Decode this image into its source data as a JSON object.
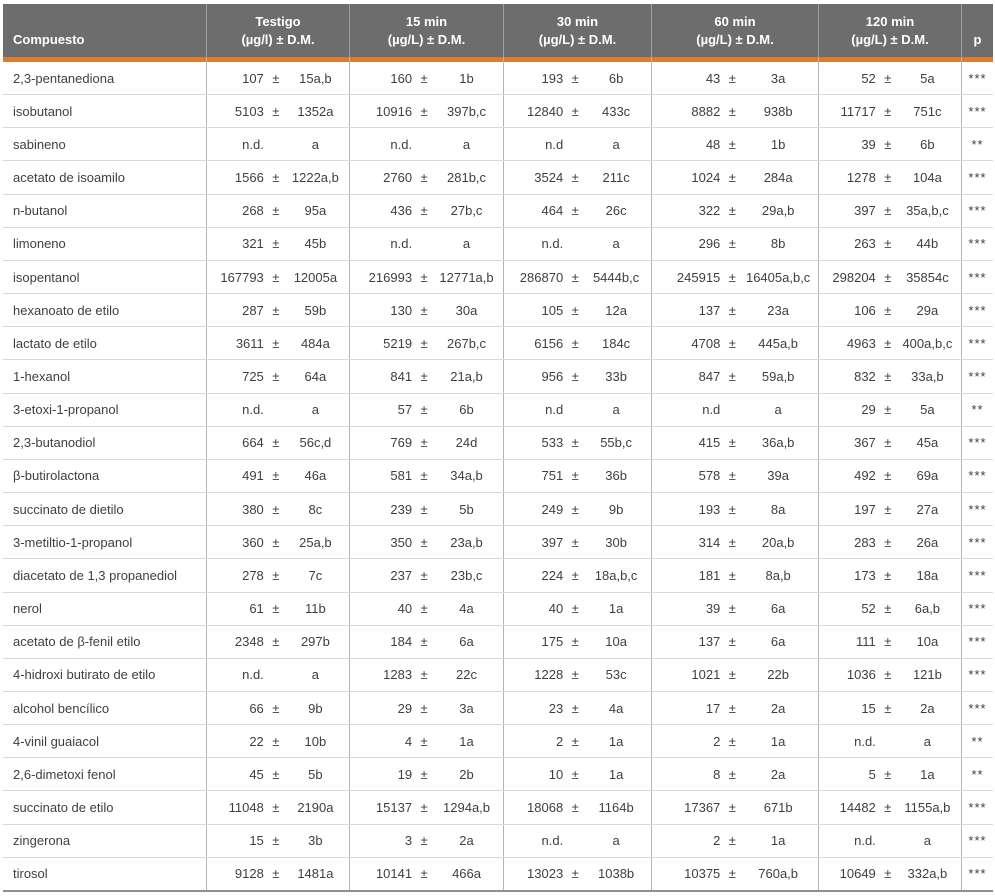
{
  "colors": {
    "header_bg": "#6d6d6d",
    "header_text": "#ffffff",
    "accent_orange": "#dd7b2f",
    "row_border": "#d9d9d9",
    "column_border": "#b5b5b5",
    "header_column_border": "#9f9f9f",
    "bottom_border": "#8f8f8f",
    "body_text": "#3f3f3f",
    "background": "#ffffff"
  },
  "table": {
    "compound_header": "Compuesto",
    "p_header": "p",
    "group_headers": [
      {
        "line1": "Testigo",
        "line2": "(µg/l) ± D.M."
      },
      {
        "line1": "15 min",
        "line2": "(µg/L) ± D.M."
      },
      {
        "line1": "30 min",
        "line2": "(µg/L) ± D.M."
      },
      {
        "line1": "60 min",
        "line2": "(µg/L) ± D.M."
      },
      {
        "line1": "120 min",
        "line2": "(µg/L) ± D.M."
      }
    ],
    "rows": [
      {
        "compound": "2,3-pentanediona",
        "cells": [
          [
            "107",
            "±",
            "15a,b"
          ],
          [
            "160",
            "±",
            "1b"
          ],
          [
            "193",
            "±",
            "6b"
          ],
          [
            "43",
            "±",
            "3a"
          ],
          [
            "52",
            "±",
            "5a"
          ]
        ],
        "p": "***"
      },
      {
        "compound": "isobutanol",
        "cells": [
          [
            "5103",
            "±",
            "1352a"
          ],
          [
            "10916",
            "±",
            "397b,c"
          ],
          [
            "12840",
            "±",
            "433c"
          ],
          [
            "8882",
            "±",
            "938b"
          ],
          [
            "11717",
            "±",
            "751c"
          ]
        ],
        "p": "***"
      },
      {
        "compound": "sabineno",
        "cells": [
          [
            "n.d.",
            "",
            "a"
          ],
          [
            "n.d.",
            "",
            "a"
          ],
          [
            "n.d",
            "",
            "a"
          ],
          [
            "48",
            "±",
            "1b"
          ],
          [
            "39",
            "±",
            "6b"
          ]
        ],
        "p": "**"
      },
      {
        "compound": "acetato de isoamilo",
        "cells": [
          [
            "1566",
            "±",
            "1222a,b"
          ],
          [
            "2760",
            "±",
            "281b,c"
          ],
          [
            "3524",
            "±",
            "211c"
          ],
          [
            "1024",
            "±",
            "284a"
          ],
          [
            "1278",
            "±",
            "104a"
          ]
        ],
        "p": "***"
      },
      {
        "compound": "n-butanol",
        "cells": [
          [
            "268",
            "±",
            "95a"
          ],
          [
            "436",
            "±",
            "27b,c"
          ],
          [
            "464",
            "±",
            "26c"
          ],
          [
            "322",
            "±",
            "29a,b"
          ],
          [
            "397",
            "±",
            "35a,b,c"
          ]
        ],
        "p": "***"
      },
      {
        "compound": "limoneno",
        "cells": [
          [
            "321",
            "±",
            "45b"
          ],
          [
            "n.d.",
            "",
            "a"
          ],
          [
            "n.d.",
            "",
            "a"
          ],
          [
            "296",
            "±",
            "8b"
          ],
          [
            "263",
            "±",
            "44b"
          ]
        ],
        "p": "***"
      },
      {
        "compound": "isopentanol",
        "cells": [
          [
            "167793",
            "±",
            "12005a"
          ],
          [
            "216993",
            "±",
            "12771a,b"
          ],
          [
            "286870",
            "±",
            "5444b,c"
          ],
          [
            "245915",
            "±",
            "16405a,b,c"
          ],
          [
            "298204",
            "±",
            "35854c"
          ]
        ],
        "p": "***"
      },
      {
        "compound": "hexanoato de etilo",
        "cells": [
          [
            "287",
            "±",
            "59b"
          ],
          [
            "130",
            "±",
            "30a"
          ],
          [
            "105",
            "±",
            "12a"
          ],
          [
            "137",
            "±",
            "23a"
          ],
          [
            "106",
            "±",
            "29a"
          ]
        ],
        "p": "***"
      },
      {
        "compound": "lactato de etilo",
        "cells": [
          [
            "3611",
            "±",
            "484a"
          ],
          [
            "5219",
            "±",
            "267b,c"
          ],
          [
            "6156",
            "±",
            "184c"
          ],
          [
            "4708",
            "±",
            "445a,b"
          ],
          [
            "4963",
            "±",
            "400a,b,c"
          ]
        ],
        "p": "***"
      },
      {
        "compound": "1-hexanol",
        "cells": [
          [
            "725",
            "±",
            "64a"
          ],
          [
            "841",
            "±",
            "21a,b"
          ],
          [
            "956",
            "±",
            "33b"
          ],
          [
            "847",
            "±",
            "59a,b"
          ],
          [
            "832",
            "±",
            "33a,b"
          ]
        ],
        "p": "***"
      },
      {
        "compound": "3-etoxi-1-propanol",
        "cells": [
          [
            "n.d.",
            "",
            "a"
          ],
          [
            "57",
            "±",
            "6b"
          ],
          [
            "n.d",
            "",
            "a"
          ],
          [
            "n.d",
            "",
            "a"
          ],
          [
            "29",
            "±",
            "5a"
          ]
        ],
        "p": "**"
      },
      {
        "compound": "2,3-butanodiol",
        "cells": [
          [
            "664",
            "±",
            "56c,d"
          ],
          [
            "769",
            "±",
            "24d"
          ],
          [
            "533",
            "±",
            "55b,c"
          ],
          [
            "415",
            "±",
            "36a,b"
          ],
          [
            "367",
            "±",
            "45a"
          ]
        ],
        "p": "***"
      },
      {
        "compound": "β-butirolactona",
        "cells": [
          [
            "491",
            "±",
            "46a"
          ],
          [
            "581",
            "±",
            "34a,b"
          ],
          [
            "751",
            "±",
            "36b"
          ],
          [
            "578",
            "±",
            "39a"
          ],
          [
            "492",
            "±",
            "69a"
          ]
        ],
        "p": "***"
      },
      {
        "compound": "succinato de dietilo",
        "cells": [
          [
            "380",
            "±",
            "8c"
          ],
          [
            "239",
            "±",
            "5b"
          ],
          [
            "249",
            "±",
            "9b"
          ],
          [
            "193",
            "±",
            "8a"
          ],
          [
            "197",
            "±",
            "27a"
          ]
        ],
        "p": "***"
      },
      {
        "compound": "3-metiltio-1-propanol",
        "cells": [
          [
            "360",
            "±",
            "25a,b"
          ],
          [
            "350",
            "±",
            "23a,b"
          ],
          [
            "397",
            "±",
            "30b"
          ],
          [
            "314",
            "±",
            "20a,b"
          ],
          [
            "283",
            "±",
            "26a"
          ]
        ],
        "p": "***"
      },
      {
        "compound": "diacetato de 1,3 propanediol",
        "cells": [
          [
            "278",
            "±",
            "7c"
          ],
          [
            "237",
            "±",
            "23b,c"
          ],
          [
            "224",
            "±",
            "18a,b,c"
          ],
          [
            "181",
            "±",
            "8a,b"
          ],
          [
            "173",
            "±",
            "18a"
          ]
        ],
        "p": "***"
      },
      {
        "compound": "nerol",
        "cells": [
          [
            "61",
            "±",
            "11b"
          ],
          [
            "40",
            "±",
            "4a"
          ],
          [
            "40",
            "±",
            "1a"
          ],
          [
            "39",
            "±",
            "6a"
          ],
          [
            "52",
            "±",
            "6a,b"
          ]
        ],
        "p": "***"
      },
      {
        "compound": "acetato de β-fenil etilo",
        "cells": [
          [
            "2348",
            "±",
            "297b"
          ],
          [
            "184",
            "±",
            "6a"
          ],
          [
            "175",
            "±",
            "10a"
          ],
          [
            "137",
            "±",
            "6a"
          ],
          [
            "111",
            "±",
            "10a"
          ]
        ],
        "p": "***"
      },
      {
        "compound": "4-hidroxi butirato de etilo",
        "cells": [
          [
            "n.d.",
            "",
            "a"
          ],
          [
            "1283",
            "±",
            "22c"
          ],
          [
            "1228",
            "±",
            "53c"
          ],
          [
            "1021",
            "±",
            "22b"
          ],
          [
            "1036",
            "±",
            "121b"
          ]
        ],
        "p": "***"
      },
      {
        "compound": "alcohol bencílico",
        "cells": [
          [
            "66",
            "±",
            "9b"
          ],
          [
            "29",
            "±",
            "3a"
          ],
          [
            "23",
            "±",
            "4a"
          ],
          [
            "17",
            "±",
            "2a"
          ],
          [
            "15",
            "±",
            "2a"
          ]
        ],
        "p": "***"
      },
      {
        "compound": "4-vinil guaiacol",
        "cells": [
          [
            "22",
            "±",
            "10b"
          ],
          [
            "4",
            "±",
            "1a"
          ],
          [
            "2",
            "±",
            "1a"
          ],
          [
            "2",
            "±",
            "1a"
          ],
          [
            "n.d.",
            "",
            "a"
          ]
        ],
        "p": "**"
      },
      {
        "compound": "2,6-dimetoxi fenol",
        "cells": [
          [
            "45",
            "±",
            "5b"
          ],
          [
            "19",
            "±",
            "2b"
          ],
          [
            "10",
            "±",
            "1a"
          ],
          [
            "8",
            "±",
            "2a"
          ],
          [
            "5",
            "±",
            "1a"
          ]
        ],
        "p": "**"
      },
      {
        "compound": "succinato de etilo",
        "cells": [
          [
            "11048",
            "±",
            "2190a"
          ],
          [
            "15137",
            "±",
            "1294a,b"
          ],
          [
            "18068",
            "±",
            "1164b"
          ],
          [
            "17367",
            "±",
            "671b"
          ],
          [
            "14482",
            "±",
            "1155a,b"
          ]
        ],
        "p": "***"
      },
      {
        "compound": "zingerona",
        "cells": [
          [
            "15",
            "±",
            "3b"
          ],
          [
            "3",
            "±",
            "2a"
          ],
          [
            "n.d.",
            "",
            "a"
          ],
          [
            "2",
            "±",
            "1a"
          ],
          [
            "n.d.",
            "",
            "a"
          ]
        ],
        "p": "***"
      },
      {
        "compound": "tirosol",
        "cells": [
          [
            "9128",
            "±",
            "1481a"
          ],
          [
            "10141",
            "±",
            "466a"
          ],
          [
            "13023",
            "±",
            "1038b"
          ],
          [
            "10375",
            "±",
            "760a,b"
          ],
          [
            "10649",
            "±",
            "332a,b"
          ]
        ],
        "p": "***"
      }
    ]
  }
}
